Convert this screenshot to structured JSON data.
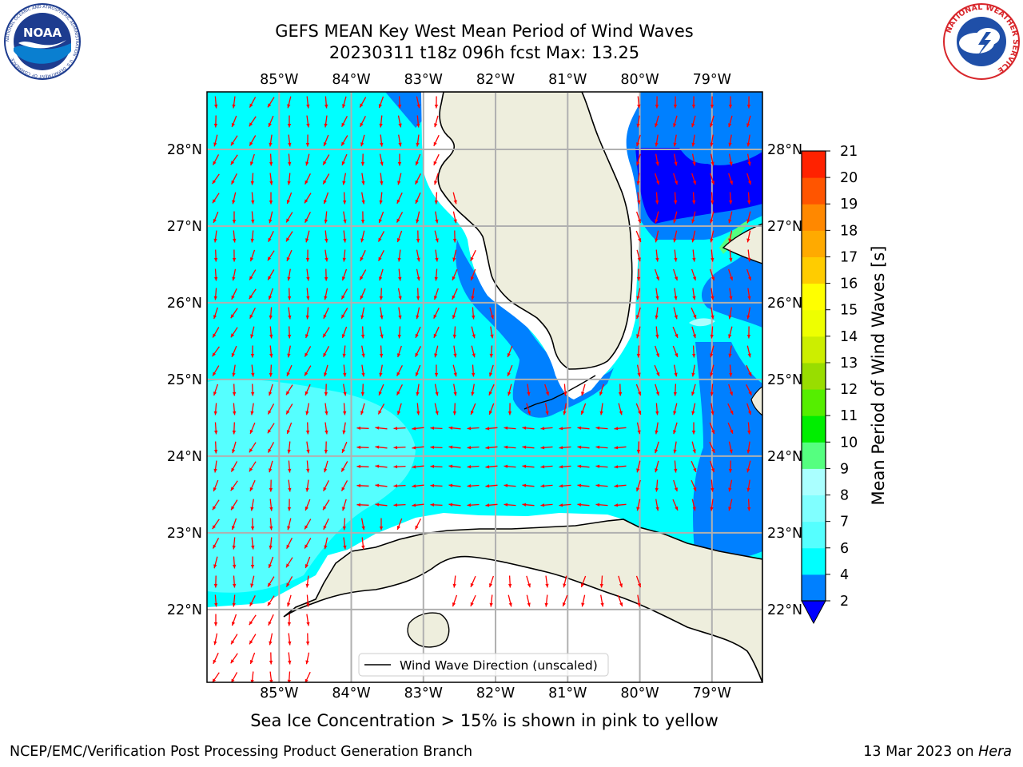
{
  "title": {
    "line1": "GEFS MEAN Key West Mean Period of Wind Waves",
    "line2": "20230311 t18z 096h fcst   Max: 13.25"
  },
  "map": {
    "lon_labels": [
      "85°W",
      "84°W",
      "83°W",
      "82°W",
      "81°W",
      "80°W",
      "79°W"
    ],
    "lat_labels_left": [
      "28°N",
      "27°N",
      "26°N",
      "25°N",
      "24°N",
      "23°N",
      "22°N"
    ],
    "lat_labels_right": [
      "28°N",
      "27°N",
      "26°N",
      "25°N",
      "24°N",
      "23°N",
      "22°N"
    ],
    "lon_range": [
      -86.0,
      -78.3
    ],
    "lat_range": [
      21.05,
      28.75
    ],
    "legend_label": "Wind Wave Direction (unscaled)",
    "colors": {
      "ocean_cyan": "#00ffff",
      "light_cyan": "#55ffff",
      "blue": "#0080ff",
      "dark_blue": "#0000ff",
      "land": "#eeeedd",
      "arrow": "#ff0000",
      "grid": "#b0b0b0"
    }
  },
  "colorbar": {
    "label": "Mean Period of Wind Waves [s]",
    "ticks": [
      "2",
      "4",
      "6",
      "7",
      "8",
      "9",
      "10",
      "11",
      "12",
      "13",
      "14",
      "15",
      "16",
      "17",
      "18",
      "19",
      "20",
      "21"
    ],
    "colors": [
      "#0080ff",
      "#00ffff",
      "#55ffff",
      "#80ffff",
      "#aaffff",
      "#55ff80",
      "#00ee00",
      "#55ee00",
      "#99dd00",
      "#ccee00",
      "#eeff00",
      "#ffff00",
      "#ffcc00",
      "#ffaa00",
      "#ff8800",
      "#ff5500",
      "#ff2200"
    ],
    "extend_color": "#0000ff"
  },
  "note": "Sea Ice Concentration > 15% is shown in pink to yellow",
  "footer": {
    "left": "NCEP/EMC/Verification Post Processing Product Generation Branch",
    "right_prefix": "13 Mar 2023 on ",
    "right_host": "Hera"
  },
  "logos": {
    "noaa": {
      "text": "NOAA",
      "ring_text": "NATIONAL OCEANIC AND ATMOSPHERIC ADMINISTRATION · U.S. DEPARTMENT OF COMMERCE"
    },
    "nws": {
      "ring_text": "NATIONAL WEATHER SERVICE"
    }
  }
}
